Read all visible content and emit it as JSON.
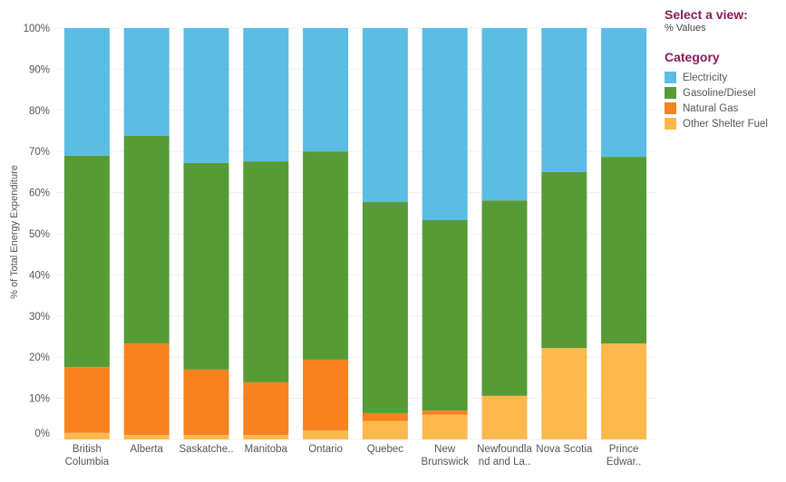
{
  "view_selector": {
    "title": "Select a view:",
    "value": "% Values"
  },
  "legend": {
    "title": "Category"
  },
  "chart_data": {
    "type": "bar",
    "stacked": true,
    "ylabel": "% of Total Energy Expenditure",
    "xlabel": "",
    "ylim": [
      0,
      100
    ],
    "yticks": [
      "0%",
      "10%",
      "20%",
      "30%",
      "40%",
      "50%",
      "60%",
      "70%",
      "80%",
      "90%",
      "100%"
    ],
    "grid": true,
    "legend_position": "right",
    "categories": [
      "British Columbia",
      "Alberta",
      "Saskatche..",
      "Manitoba",
      "Ontario",
      "Quebec",
      "New Brunswick",
      "Newfoundland and La..",
      "Nova Scotia",
      "Prince Edwar.."
    ],
    "series": [
      {
        "name": "Other Shelter Fuel",
        "color": "#fdb94e",
        "values": [
          1.6,
          1.1,
          1.1,
          1.1,
          2.2,
          4.5,
          6.0,
          10.6,
          22.2,
          23.3
        ]
      },
      {
        "name": "Natural Gas",
        "color": "#f7821e",
        "values": [
          16.0,
          22.2,
          15.9,
          12.8,
          17.2,
          1.9,
          1.0,
          0.0,
          0.0,
          0.0
        ]
      },
      {
        "name": "Gasoline/Diesel",
        "color": "#579b37",
        "values": [
          51.4,
          50.5,
          50.2,
          53.7,
          50.6,
          51.3,
          46.3,
          47.5,
          42.8,
          45.4
        ]
      },
      {
        "name": "Electricity",
        "color": "#5bbce4",
        "values": [
          31.0,
          26.2,
          32.8,
          32.4,
          30.0,
          42.3,
          46.7,
          41.9,
          35.0,
          31.3
        ]
      }
    ]
  }
}
